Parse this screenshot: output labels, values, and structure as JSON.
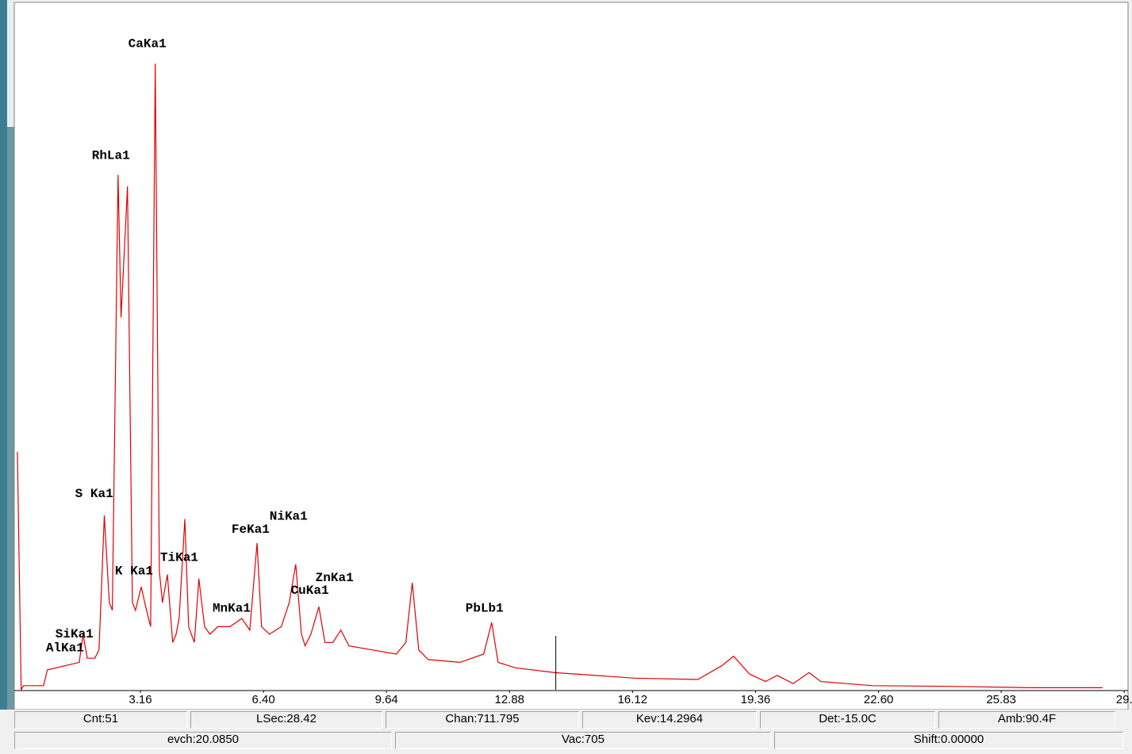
{
  "chart_data": {
    "type": "line",
    "color": "#e00000",
    "xlim": [
      -0.12,
      29.17
    ],
    "ylim": [
      0,
      100
    ],
    "xticks": [
      3.16,
      {
        "value": 6.4,
        "label": "6.40"
      },
      9.64,
      12.88,
      16.12,
      19.36,
      {
        "value": 22.6,
        "label": "22.60"
      },
      25.83,
      {
        "value": 29.07,
        "label": "29."
      }
    ],
    "x": [
      -0.08,
      0.02,
      0.08,
      0.61,
      0.71,
      1.55,
      1.65,
      1.76,
      1.96,
      2.07,
      2.21,
      2.34,
      2.42,
      2.57,
      2.65,
      2.82,
      2.95,
      3.03,
      3.18,
      3.32,
      3.43,
      3.55,
      3.66,
      3.74,
      3.87,
      4.01,
      4.1,
      4.18,
      4.33,
      4.43,
      4.58,
      4.7,
      4.85,
      4.99,
      5.2,
      5.52,
      5.83,
      6.04,
      6.23,
      6.35,
      6.56,
      6.87,
      7.08,
      7.25,
      7.4,
      7.5,
      7.65,
      7.86,
      8.02,
      8.23,
      8.44,
      8.65,
      9.28,
      9.9,
      10.15,
      10.32,
      10.49,
      10.74,
      11.58,
      12.2,
      12.41,
      12.58,
      13.04,
      14.08,
      16.17,
      17.84,
      18.47,
      18.78,
      19.2,
      19.62,
      19.93,
      20.35,
      20.77,
      21.08,
      22.44,
      24.53,
      26.62,
      28.5
    ],
    "values": [
      34.7,
      0,
      0.6,
      0.6,
      2.9,
      4.0,
      8.1,
      4.6,
      4.6,
      5.8,
      25.4,
      12.7,
      11.6,
      75.1,
      54.3,
      73.4,
      12.7,
      11.6,
      15.0,
      11.6,
      9.2,
      91.3,
      17.3,
      12.7,
      16.8,
      6.9,
      8.1,
      10.4,
      24.9,
      9.2,
      6.9,
      16.2,
      9.2,
      8.1,
      9.2,
      9.2,
      10.4,
      8.7,
      21.4,
      9.2,
      8.1,
      9.2,
      12.7,
      18.3,
      8.1,
      6.4,
      8.1,
      12.1,
      6.9,
      6.9,
      8.7,
      6.4,
      5.8,
      5.2,
      6.9,
      15.6,
      5.8,
      4.4,
      4.0,
      5.2,
      9.8,
      4.0,
      3.2,
      2.5,
      1.7,
      1.5,
      3.5,
      4.9,
      2.3,
      1.2,
      2.1,
      0.9,
      2.5,
      1.2,
      0.6,
      0.5,
      0.3,
      0.3
    ],
    "cursor_x": 14.1,
    "annotations": [
      {
        "text": "CaKa1",
        "x": 2.84,
        "y": 94.2
      },
      {
        "text": "RhLa1",
        "x": 1.88,
        "y": 77.9
      },
      {
        "text": "S Ka1",
        "x": 1.44,
        "y": 28.6
      },
      {
        "text": "K Ka1",
        "x": 2.49,
        "y": 17.3
      },
      {
        "text": "TiKa1",
        "x": 3.68,
        "y": 19.3
      },
      {
        "text": "FeKa1",
        "x": 5.56,
        "y": 23.4
      },
      {
        "text": "NiKa1",
        "x": 6.56,
        "y": 25.3
      },
      {
        "text": "ZnKa1",
        "x": 7.77,
        "y": 16.3
      },
      {
        "text": "CuKa1",
        "x": 7.12,
        "y": 14.5
      },
      {
        "text": "MnKa1",
        "x": 5.06,
        "y": 11.9
      },
      {
        "text": "SiKa1",
        "x": 0.92,
        "y": 8.1
      },
      {
        "text": "AlKa1",
        "x": 0.67,
        "y": 6.1
      },
      {
        "text": "PbLb1",
        "x": 11.72,
        "y": 11.9
      }
    ]
  },
  "status": {
    "row1": [
      "Cnt:51",
      "LSec:28.42",
      "Chan:711.795",
      "Kev:14.2964",
      "Det:-15.0C",
      "Amb:90.4F"
    ],
    "row2": [
      "evch:20.0850",
      "Vac:705",
      "Shift:0.00000"
    ]
  }
}
